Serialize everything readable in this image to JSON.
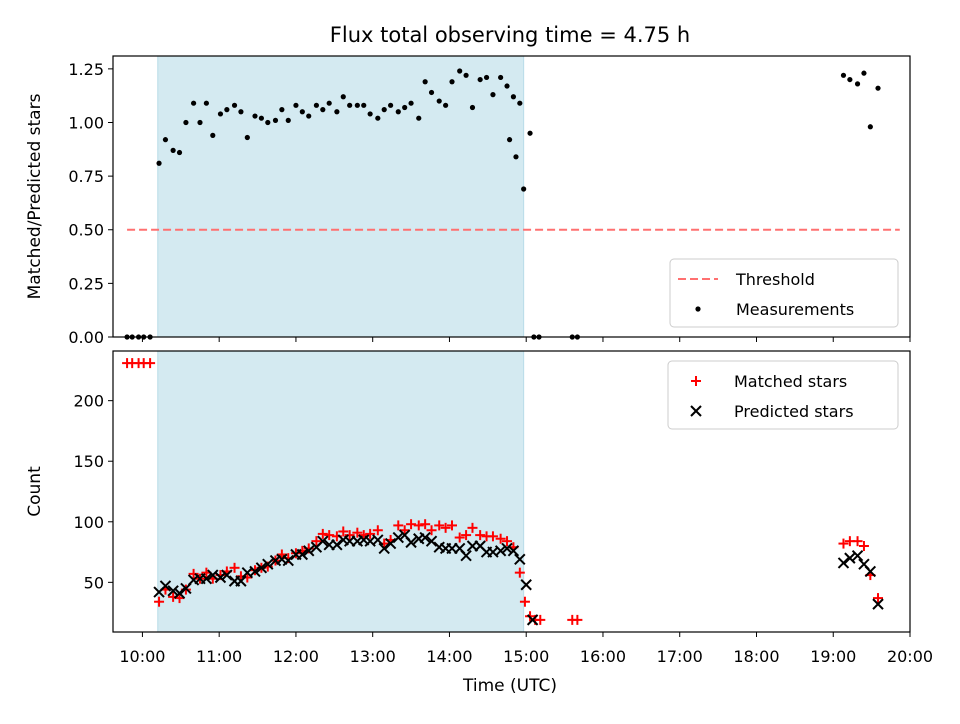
{
  "figure": {
    "title": "Flux total observing time = 4.75 h",
    "xlabel": "Time (UTC)"
  },
  "chart_data": [
    {
      "type": "scatter",
      "ylabel": "Matched/Predicted stars",
      "xlim": [
        "09:37",
        "20:00"
      ],
      "ylim": [
        0,
        1.31
      ],
      "yticks": [
        "0.00",
        "0.25",
        "0.50",
        "0.75",
        "1.00",
        "1.25"
      ],
      "xticks": [
        "10:00",
        "11:00",
        "12:00",
        "13:00",
        "14:00",
        "15:00",
        "16:00",
        "17:00",
        "18:00",
        "19:00",
        "20:00"
      ],
      "shaded_span": [
        "10:12",
        "14:58"
      ],
      "shade_color": "#d4eaf1",
      "threshold": {
        "name": "Threshold",
        "y": 0.5,
        "x_range": [
          "09:48",
          "19:52"
        ],
        "color": "#ff7070"
      },
      "legend": {
        "placement": "lower-right",
        "entries": [
          "Threshold",
          "Measurements"
        ]
      },
      "series": [
        {
          "name": "Measurements",
          "color": "#000000",
          "points": [
            [
              "09:48",
              0.0
            ],
            [
              "09:52",
              0.0
            ],
            [
              "09:57",
              0.0
            ],
            [
              "10:01",
              0.0
            ],
            [
              "10:06",
              0.0
            ],
            [
              "10:13",
              0.81
            ],
            [
              "10:18",
              0.92
            ],
            [
              "10:24",
              0.87
            ],
            [
              "10:29",
              0.86
            ],
            [
              "10:34",
              1.0
            ],
            [
              "10:40",
              1.09
            ],
            [
              "10:45",
              1.0
            ],
            [
              "10:50",
              1.09
            ],
            [
              "10:55",
              0.94
            ],
            [
              "11:01",
              1.04
            ],
            [
              "11:06",
              1.06
            ],
            [
              "11:12",
              1.08
            ],
            [
              "11:17",
              1.05
            ],
            [
              "11:22",
              0.93
            ],
            [
              "11:28",
              1.03
            ],
            [
              "11:33",
              1.02
            ],
            [
              "11:38",
              1.0
            ],
            [
              "11:44",
              1.01
            ],
            [
              "11:49",
              1.06
            ],
            [
              "11:54",
              1.01
            ],
            [
              "12:00",
              1.08
            ],
            [
              "12:05",
              1.05
            ],
            [
              "12:10",
              1.03
            ],
            [
              "12:16",
              1.08
            ],
            [
              "12:21",
              1.06
            ],
            [
              "12:26",
              1.09
            ],
            [
              "12:32",
              1.05
            ],
            [
              "12:37",
              1.12
            ],
            [
              "12:42",
              1.08
            ],
            [
              "12:48",
              1.08
            ],
            [
              "12:53",
              1.08
            ],
            [
              "12:58",
              1.04
            ],
            [
              "13:04",
              1.02
            ],
            [
              "13:09",
              1.06
            ],
            [
              "13:14",
              1.08
            ],
            [
              "13:20",
              1.05
            ],
            [
              "13:25",
              1.07
            ],
            [
              "13:30",
              1.09
            ],
            [
              "13:36",
              1.02
            ],
            [
              "13:41",
              1.19
            ],
            [
              "13:46",
              1.14
            ],
            [
              "13:52",
              1.1
            ],
            [
              "13:57",
              1.08
            ],
            [
              "14:02",
              1.19
            ],
            [
              "14:08",
              1.24
            ],
            [
              "14:13",
              1.22
            ],
            [
              "14:18",
              1.07
            ],
            [
              "14:24",
              1.2
            ],
            [
              "14:29",
              1.21
            ],
            [
              "14:34",
              1.13
            ],
            [
              "14:40",
              1.21
            ],
            [
              "14:45",
              1.17
            ],
            [
              "14:50",
              1.12
            ],
            [
              "14:55",
              1.09
            ],
            [
              "14:47",
              0.92
            ],
            [
              "14:52",
              0.84
            ],
            [
              "14:58",
              0.69
            ],
            [
              "15:03",
              0.95
            ],
            [
              "15:06",
              0.0
            ],
            [
              "15:10",
              0.0
            ],
            [
              "15:36",
              0.0
            ],
            [
              "15:40",
              0.0
            ],
            [
              "19:08",
              1.22
            ],
            [
              "19:13",
              1.2
            ],
            [
              "19:19",
              1.18
            ],
            [
              "19:24",
              1.23
            ],
            [
              "19:29",
              0.98
            ],
            [
              "19:35",
              1.16
            ]
          ]
        }
      ]
    },
    {
      "type": "scatter",
      "ylabel": "Count",
      "xlim": [
        "09:37",
        "20:00"
      ],
      "ylim": [
        9,
        241
      ],
      "yticks": [
        "50",
        "100",
        "150",
        "200"
      ],
      "xticks": [
        "10:00",
        "11:00",
        "12:00",
        "13:00",
        "14:00",
        "15:00",
        "16:00",
        "17:00",
        "18:00",
        "19:00",
        "20:00"
      ],
      "shaded_span": [
        "10:12",
        "14:58"
      ],
      "shade_color": "#d4eaf1",
      "legend": {
        "placement": "upper-right",
        "entries": [
          "Matched stars",
          "Predicted stars"
        ]
      },
      "series": [
        {
          "name": "Matched stars",
          "marker": "+",
          "color": "#ff0000",
          "points": [
            [
              "09:48",
              231
            ],
            [
              "09:52",
              231
            ],
            [
              "09:57",
              231
            ],
            [
              "10:01",
              231
            ],
            [
              "10:06",
              231
            ],
            [
              "10:13",
              34
            ],
            [
              "10:18",
              44
            ],
            [
              "10:24",
              38
            ],
            [
              "10:29",
              37
            ],
            [
              "10:34",
              44
            ],
            [
              "10:40",
              57
            ],
            [
              "10:45",
              53
            ],
            [
              "10:50",
              58
            ],
            [
              "10:55",
              53
            ],
            [
              "11:01",
              56
            ],
            [
              "11:06",
              59
            ],
            [
              "11:12",
              62
            ],
            [
              "11:17",
              55
            ],
            [
              "11:22",
              54
            ],
            [
              "11:28",
              60
            ],
            [
              "11:33",
              62
            ],
            [
              "11:38",
              63
            ],
            [
              "11:44",
              68
            ],
            [
              "11:49",
              73
            ],
            [
              "11:54",
              70
            ],
            [
              "12:00",
              74
            ],
            [
              "12:05",
              76
            ],
            [
              "12:10",
              78
            ],
            [
              "12:16",
              84
            ],
            [
              "12:21",
              90
            ],
            [
              "12:26",
              89
            ],
            [
              "12:32",
              88
            ],
            [
              "12:37",
              92
            ],
            [
              "12:42",
              89
            ],
            [
              "12:48",
              91
            ],
            [
              "12:53",
              89
            ],
            [
              "12:58",
              90
            ],
            [
              "13:04",
              93
            ],
            [
              "13:09",
              82
            ],
            [
              "13:14",
              85
            ],
            [
              "13:20",
              97
            ],
            [
              "13:25",
              93
            ],
            [
              "13:30",
              98
            ],
            [
              "13:36",
              97
            ],
            [
              "13:41",
              98
            ],
            [
              "13:46",
              93
            ],
            [
              "13:52",
              97
            ],
            [
              "13:57",
              95
            ],
            [
              "14:02",
              97
            ],
            [
              "14:08",
              87
            ],
            [
              "14:13",
              89
            ],
            [
              "14:18",
              95
            ],
            [
              "14:24",
              89
            ],
            [
              "14:29",
              88
            ],
            [
              "14:34",
              88
            ],
            [
              "14:40",
              86
            ],
            [
              "14:45",
              84
            ],
            [
              "14:50",
              79
            ],
            [
              "14:55",
              58
            ],
            [
              "14:59",
              34
            ],
            [
              "15:03",
              22
            ],
            [
              "15:07",
              19
            ],
            [
              "15:11",
              19
            ],
            [
              "15:36",
              19
            ],
            [
              "15:40",
              19
            ],
            [
              "19:08",
              82
            ],
            [
              "19:13",
              84
            ],
            [
              "19:19",
              84
            ],
            [
              "19:24",
              80
            ],
            [
              "19:29",
              56
            ],
            [
              "19:35",
              37
            ]
          ]
        },
        {
          "name": "Predicted stars",
          "marker": "x",
          "color": "#000000",
          "points": [
            [
              "10:13",
              42
            ],
            [
              "10:18",
              47
            ],
            [
              "10:24",
              43
            ],
            [
              "10:29",
              41
            ],
            [
              "10:34",
              45
            ],
            [
              "10:40",
              52
            ],
            [
              "10:45",
              53
            ],
            [
              "10:50",
              53
            ],
            [
              "10:55",
              56
            ],
            [
              "11:01",
              54
            ],
            [
              "11:06",
              56
            ],
            [
              "11:12",
              51
            ],
            [
              "11:17",
              51
            ],
            [
              "11:22",
              58
            ],
            [
              "11:28",
              59
            ],
            [
              "11:33",
              62
            ],
            [
              "11:38",
              65
            ],
            [
              "11:44",
              68
            ],
            [
              "11:49",
              69
            ],
            [
              "11:54",
              68
            ],
            [
              "12:00",
              73
            ],
            [
              "12:05",
              73
            ],
            [
              "12:10",
              76
            ],
            [
              "12:16",
              79
            ],
            [
              "12:21",
              84
            ],
            [
              "12:26",
              81
            ],
            [
              "12:32",
              81
            ],
            [
              "12:37",
              85
            ],
            [
              "12:42",
              84
            ],
            [
              "12:48",
              84
            ],
            [
              "12:53",
              85
            ],
            [
              "12:58",
              84
            ],
            [
              "13:04",
              85
            ],
            [
              "13:09",
              78
            ],
            [
              "13:14",
              82
            ],
            [
              "13:20",
              87
            ],
            [
              "13:25",
              89
            ],
            [
              "13:30",
              83
            ],
            [
              "13:36",
              86
            ],
            [
              "13:41",
              87
            ],
            [
              "13:46",
              84
            ],
            [
              "13:52",
              79
            ],
            [
              "13:57",
              78
            ],
            [
              "14:02",
              78
            ],
            [
              "14:08",
              78
            ],
            [
              "14:13",
              72
            ],
            [
              "14:18",
              80
            ],
            [
              "14:24",
              80
            ],
            [
              "14:29",
              75
            ],
            [
              "14:34",
              75
            ],
            [
              "14:40",
              76
            ],
            [
              "14:45",
              78
            ],
            [
              "14:50",
              76
            ],
            [
              "14:55",
              69
            ],
            [
              "15:00",
              48
            ],
            [
              "15:05",
              19
            ],
            [
              "19:08",
              66
            ],
            [
              "19:13",
              70
            ],
            [
              "19:19",
              72
            ],
            [
              "19:24",
              65
            ],
            [
              "19:29",
              59
            ],
            [
              "19:35",
              32
            ]
          ]
        }
      ]
    }
  ]
}
